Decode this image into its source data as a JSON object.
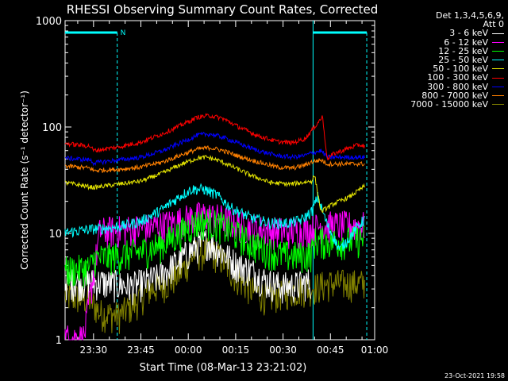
{
  "chart_data": {
    "type": "line",
    "title": "RHESSI Observing Summary Count Rates, Corrected",
    "xlabel": "Start Time (08-Mar-13 23:21:02)",
    "ylabel": "Corrected Count Rate (s⁻¹ detector⁻¹)",
    "yscale": "log",
    "ylim": [
      1,
      1000
    ],
    "xlim_minutes": [
      -39,
      59
    ],
    "x_ticks": [
      {
        "label": "23:30",
        "min": -30
      },
      {
        "label": "23:45",
        "min": -15
      },
      {
        "label": "00:00",
        "min": 0
      },
      {
        "label": "00:15",
        "min": 15
      },
      {
        "label": "00:30",
        "min": 30
      },
      {
        "label": "00:45",
        "min": 45
      },
      {
        "label": "01:00",
        "min": 60
      }
    ],
    "y_ticks": [
      {
        "label": "1",
        "value": 1
      },
      {
        "label": "10",
        "value": 10
      },
      {
        "label": "100",
        "value": 100
      },
      {
        "label": "1000",
        "value": 1000
      }
    ],
    "legend_header": [
      "Det 1,3,4,5,6,9,",
      "Att 0"
    ],
    "grid": false,
    "legend_position": "right",
    "night_marker": "N",
    "night_intervals_minutes": [
      [
        -39,
        -22.5
      ],
      [
        39.5,
        56.5
      ]
    ],
    "series": [
      {
        "name": "3 - 6 keV",
        "color": "#ffffff",
        "points": [
          [
            -39,
            3.5
          ],
          [
            -28,
            3.5
          ],
          [
            -18,
            3.2
          ],
          [
            -10,
            3.8
          ],
          [
            -3,
            5.5
          ],
          [
            2,
            7.5
          ],
          [
            6,
            8.5
          ],
          [
            10,
            7
          ],
          [
            15,
            5.2
          ],
          [
            20,
            4.5
          ],
          [
            25,
            3.5
          ],
          [
            30,
            3.2
          ],
          [
            35,
            3.3
          ],
          [
            39,
            3.6
          ]
        ]
      },
      {
        "name": "6 - 12 keV",
        "color": "#ff00ff",
        "points": [
          [
            -39,
            1.05
          ],
          [
            -36,
            1.05
          ],
          [
            -33,
            1.05
          ],
          [
            -28,
            10.5
          ],
          [
            -20,
            11
          ],
          [
            -12,
            11.5
          ],
          [
            -6,
            12.5
          ],
          [
            0,
            14
          ],
          [
            5,
            15
          ],
          [
            10,
            14
          ],
          [
            15,
            12.5
          ],
          [
            22,
            11
          ],
          [
            30,
            10.5
          ],
          [
            39,
            11
          ],
          [
            42,
            12
          ],
          [
            50,
            12
          ],
          [
            56,
            12
          ]
        ]
      },
      {
        "name": "12 - 25 keV",
        "color": "#00ff00",
        "points": [
          [
            -39,
            4.5
          ],
          [
            -31,
            4.8
          ],
          [
            -30,
            5.8
          ],
          [
            -22,
            6.2
          ],
          [
            -15,
            6.8
          ],
          [
            -8,
            8
          ],
          [
            -3,
            10
          ],
          [
            2,
            12.5
          ],
          [
            6,
            13
          ],
          [
            10,
            12
          ],
          [
            15,
            10
          ],
          [
            20,
            8
          ],
          [
            25,
            7
          ],
          [
            30,
            6.3
          ],
          [
            35,
            6.2
          ],
          [
            39,
            6.5
          ],
          [
            40,
            8.5
          ],
          [
            45,
            8.5
          ],
          [
            50,
            8.5
          ],
          [
            56,
            9
          ]
        ]
      },
      {
        "name": "25 - 50 keV",
        "color": "#00ffff",
        "points": [
          [
            -39,
            10.2
          ],
          [
            -30,
            11
          ],
          [
            -22,
            11.5
          ],
          [
            -15,
            13
          ],
          [
            -8,
            17
          ],
          [
            -3,
            22
          ],
          [
            1,
            26
          ],
          [
            5,
            26
          ],
          [
            9,
            23
          ],
          [
            14,
            17
          ],
          [
            20,
            14
          ],
          [
            26,
            12.5
          ],
          [
            32,
            12.5
          ],
          [
            36,
            13.5
          ],
          [
            39,
            16
          ],
          [
            41,
            22
          ],
          [
            44,
            12
          ],
          [
            48,
            7
          ],
          [
            52,
            10
          ],
          [
            56,
            14
          ]
        ]
      },
      {
        "name": "50 - 100 keV",
        "color": "#e5e500",
        "points": [
          [
            -39,
            30
          ],
          [
            -30,
            27
          ],
          [
            -22,
            29
          ],
          [
            -15,
            31
          ],
          [
            -8,
            37
          ],
          [
            -2,
            45
          ],
          [
            3,
            51
          ],
          [
            6,
            52
          ],
          [
            10,
            48
          ],
          [
            15,
            41
          ],
          [
            20,
            35
          ],
          [
            26,
            30
          ],
          [
            32,
            29
          ],
          [
            36,
            30
          ],
          [
            39,
            31
          ],
          [
            40,
            35
          ],
          [
            42,
            16
          ],
          [
            46,
            19
          ],
          [
            51,
            22
          ],
          [
            56,
            28
          ]
        ]
      },
      {
        "name": "100 - 300 keV",
        "color": "#ff0000",
        "points": [
          [
            -39,
            70
          ],
          [
            -31,
            66
          ],
          [
            -30,
            60
          ],
          [
            -22,
            65
          ],
          [
            -15,
            72
          ],
          [
            -8,
            87
          ],
          [
            -2,
            105
          ],
          [
            3,
            124
          ],
          [
            7,
            128
          ],
          [
            11,
            120
          ],
          [
            16,
            100
          ],
          [
            22,
            83
          ],
          [
            28,
            73
          ],
          [
            33,
            71
          ],
          [
            37,
            78
          ],
          [
            39,
            92
          ],
          [
            41,
            110
          ],
          [
            42.5,
            125
          ],
          [
            44,
            50
          ],
          [
            46,
            56
          ],
          [
            50,
            62
          ],
          [
            54,
            68
          ],
          [
            56,
            66
          ]
        ]
      },
      {
        "name": "300 - 800 keV",
        "color": "#0000ff",
        "points": [
          [
            -39,
            51
          ],
          [
            -31,
            49
          ],
          [
            -30,
            46
          ],
          [
            -22,
            49
          ],
          [
            -15,
            52
          ],
          [
            -8,
            60
          ],
          [
            -2,
            72
          ],
          [
            3,
            84
          ],
          [
            7,
            86
          ],
          [
            11,
            80
          ],
          [
            16,
            70
          ],
          [
            22,
            60
          ],
          [
            28,
            54
          ],
          [
            33,
            52
          ],
          [
            37,
            54
          ],
          [
            39,
            57
          ],
          [
            42,
            60
          ],
          [
            44,
            52
          ],
          [
            50,
            52
          ],
          [
            56,
            52
          ]
        ]
      },
      {
        "name": "800 - 7000 keV",
        "color": "#ff8000",
        "points": [
          [
            -39,
            43
          ],
          [
            -31,
            41
          ],
          [
            -30,
            39
          ],
          [
            -22,
            40
          ],
          [
            -15,
            42
          ],
          [
            -8,
            47
          ],
          [
            -2,
            55
          ],
          [
            3,
            62
          ],
          [
            7,
            64
          ],
          [
            11,
            60
          ],
          [
            16,
            53
          ],
          [
            22,
            47
          ],
          [
            28,
            42
          ],
          [
            33,
            41
          ],
          [
            37,
            44
          ],
          [
            39,
            47
          ],
          [
            42,
            49
          ],
          [
            44,
            45
          ],
          [
            50,
            45
          ],
          [
            56,
            45
          ]
        ]
      },
      {
        "name": "7000 - 15000 keV",
        "color": "#808000",
        "points": [
          [
            -39,
            2.6
          ],
          [
            -31,
            2.4
          ],
          [
            -28,
            1.8
          ],
          [
            -22,
            1.7
          ],
          [
            -17,
            2.2
          ],
          [
            -12,
            3
          ],
          [
            -6,
            3.5
          ],
          [
            -2,
            4.5
          ],
          [
            2,
            6.5
          ],
          [
            7,
            6.8
          ],
          [
            10,
            6
          ],
          [
            15,
            4
          ],
          [
            20,
            3
          ],
          [
            25,
            2.5
          ],
          [
            30,
            2.8
          ],
          [
            35,
            3
          ],
          [
            39,
            3.1
          ],
          [
            45,
            3.4
          ],
          [
            50,
            3.4
          ],
          [
            56,
            3.4
          ]
        ]
      }
    ]
  },
  "timestamp": "23-Oct-2021 19:58"
}
